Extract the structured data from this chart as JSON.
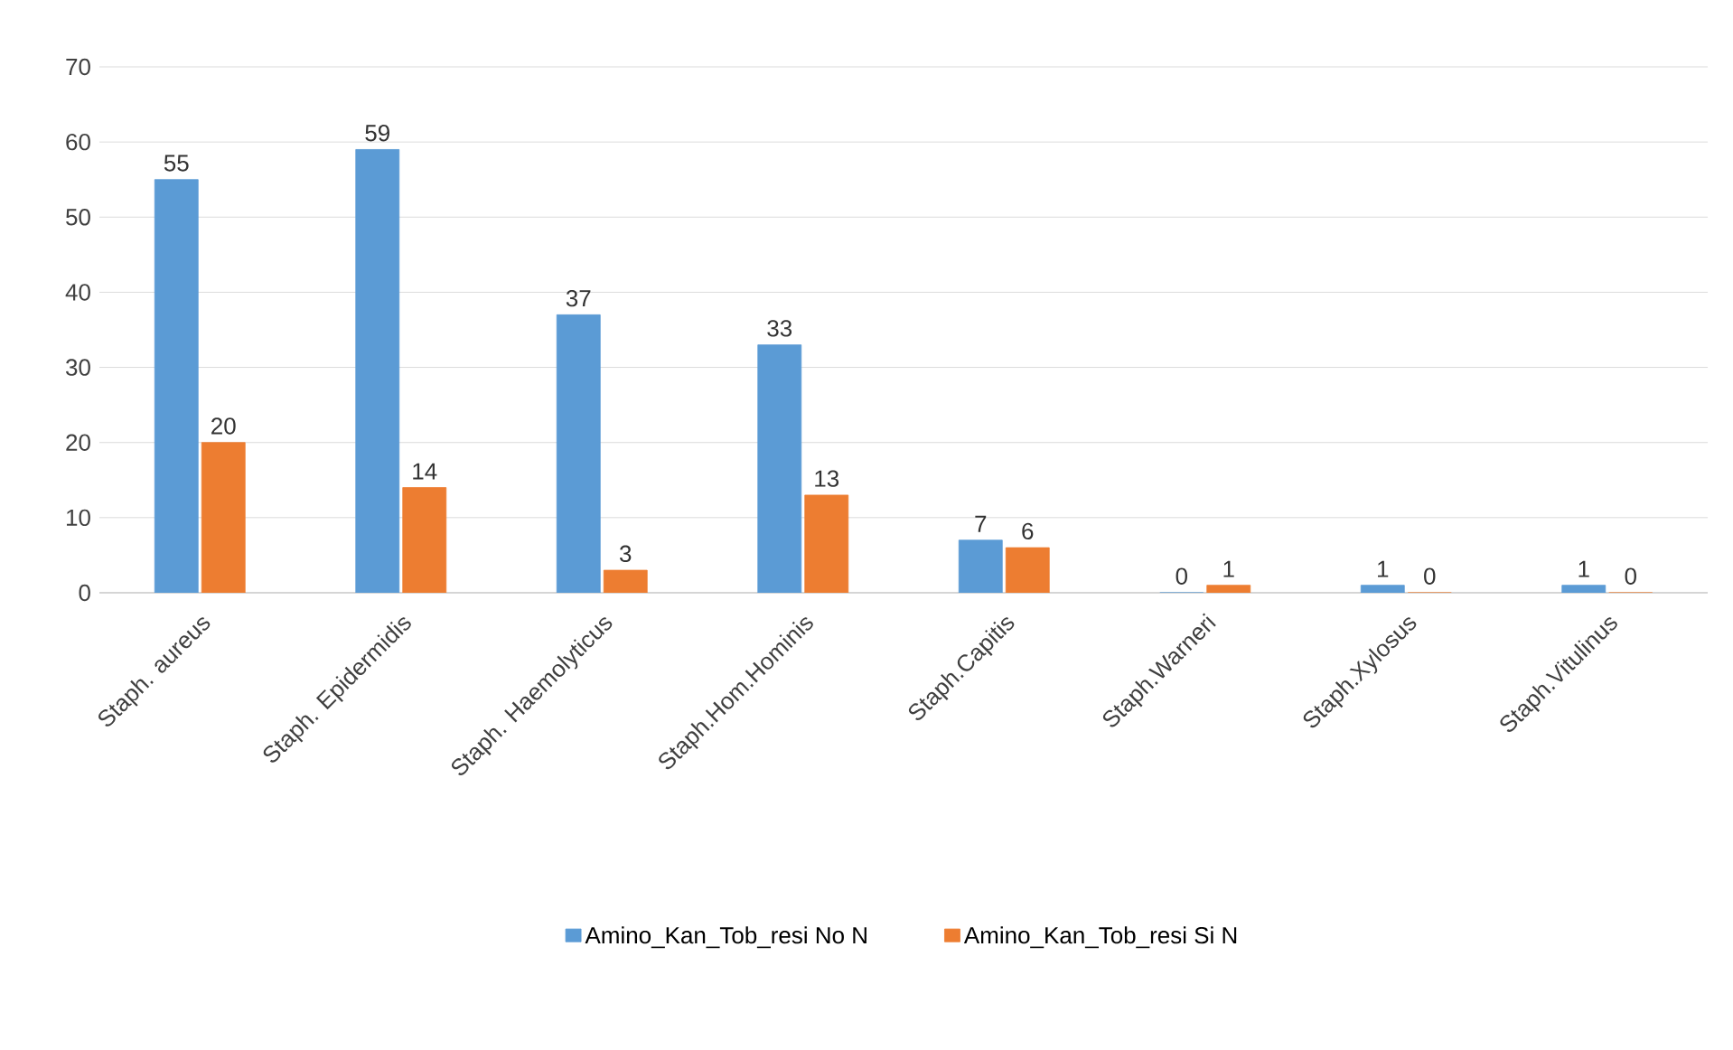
{
  "chart_data": {
    "type": "bar",
    "categories": [
      "Staph. aureus",
      "Staph. Epidermidis",
      "Staph. Haemolyticus",
      "Staph.Hom.Hominis",
      "Staph.Capitis",
      "Staph.Warneri",
      "Staph.Xylosus",
      "Staph.Vitulinus"
    ],
    "series": [
      {
        "name": "Amino_Kan_Tob_resi No N",
        "color": "#5b9bd5",
        "values": [
          55,
          59,
          37,
          33,
          7,
          0,
          1,
          1
        ]
      },
      {
        "name": "Amino_Kan_Tob_resi Si N",
        "color": "#ed7d31",
        "values": [
          20,
          14,
          3,
          13,
          6,
          1,
          0,
          0
        ]
      }
    ],
    "ylim": [
      0,
      70
    ],
    "yticks": [
      0,
      10,
      20,
      30,
      40,
      50,
      60,
      70
    ],
    "grid": "y",
    "legend": "bottom",
    "data_labels": true
  }
}
